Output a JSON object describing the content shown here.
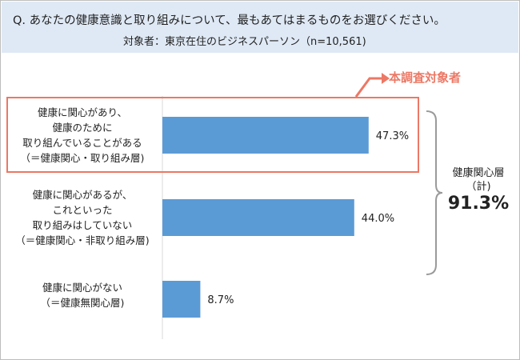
{
  "header": {
    "question": "Q. あなたの健康意識と取り組みについて、最もあてはまるものをお選びください。",
    "subtitle": "対象者：東京在住のビジネスパーソン（n=10,561)"
  },
  "chart_data": {
    "type": "bar",
    "orientation": "horizontal",
    "categories": [
      [
        "健康に関心があり、",
        "健康のために",
        "取り組んでいることがある",
        "（＝健康関心・取り組み層)"
      ],
      [
        "健康に関心があるが、",
        "これといった",
        "取り組みはしていない",
        "（＝健康関心・非取り組み層)"
      ],
      [
        "健康に関心がない",
        "（＝健康無関心層)"
      ]
    ],
    "values": [
      47.3,
      44.0,
      8.7
    ],
    "value_labels": [
      "47.3%",
      "44.0%",
      "8.7%"
    ],
    "xlim": [
      0,
      100
    ],
    "grid": false,
    "bar_color": "#5b9bd5"
  },
  "annotations": {
    "callout_label": "本調査対象者",
    "group_label_lines": [
      "健康関心層",
      "（計)"
    ],
    "group_value": "91.3%",
    "callout_color": "#ec7865"
  }
}
